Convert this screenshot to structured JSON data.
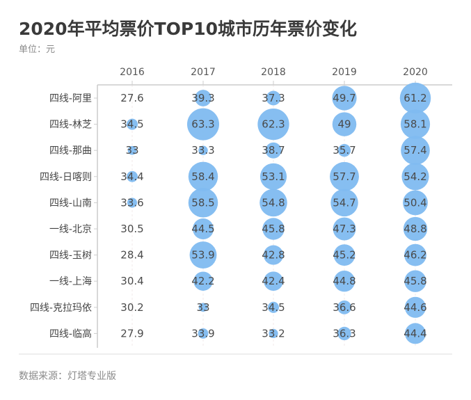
{
  "header": {
    "title": "2020年平均票价TOP10城市历年票价变化",
    "unit": "单位：元"
  },
  "footer": {
    "source": "数据来源：灯塔专业版"
  },
  "colors": {
    "bubble": "#7fbaf0",
    "axis": "#cccccc",
    "grid": "#f0e8e8"
  },
  "chart_data": {
    "type": "scatter",
    "subtype": "bubble-matrix",
    "title": "2020年平均票价TOP10城市历年票价变化",
    "unit": "元",
    "x": [
      "2016",
      "2017",
      "2018",
      "2019",
      "2020"
    ],
    "x_axis_position": "top",
    "categories": [
      "四线-阿里",
      "四线-林芝",
      "四线-那曲",
      "四线-日喀则",
      "四线-山南",
      "一线-北京",
      "四线-玉树",
      "一线-上海",
      "四线-克拉玛依",
      "四线-临高"
    ],
    "series": [
      {
        "name": "四线-阿里",
        "values": [
          27.6,
          39.3,
          37.3,
          49.7,
          61.2
        ]
      },
      {
        "name": "四线-林芝",
        "values": [
          34.5,
          63.3,
          62.3,
          49,
          58.1
        ]
      },
      {
        "name": "四线-那曲",
        "values": [
          33,
          33.3,
          38.7,
          35.7,
          57.4
        ]
      },
      {
        "name": "四线-日喀则",
        "values": [
          34.4,
          58.4,
          53.1,
          57.7,
          54.2
        ]
      },
      {
        "name": "四线-山南",
        "values": [
          33.6,
          58.5,
          54.8,
          54.7,
          50.4
        ]
      },
      {
        "name": "一线-北京",
        "values": [
          30.5,
          44.5,
          45.8,
          47.3,
          48.8
        ]
      },
      {
        "name": "四线-玉树",
        "values": [
          28.4,
          53.9,
          42.8,
          45.2,
          46.2
        ]
      },
      {
        "name": "一线-上海",
        "values": [
          30.4,
          42.2,
          42.4,
          44.8,
          45.8
        ]
      },
      {
        "name": "四线-克拉玛依",
        "values": [
          30.2,
          33,
          34.5,
          36.6,
          44.6
        ]
      },
      {
        "name": "四线-临高",
        "values": [
          27.9,
          33.9,
          33.2,
          36.3,
          44.4
        ]
      }
    ],
    "size_encoding": "bubble area grows with value",
    "grid": true,
    "legend": "none"
  }
}
